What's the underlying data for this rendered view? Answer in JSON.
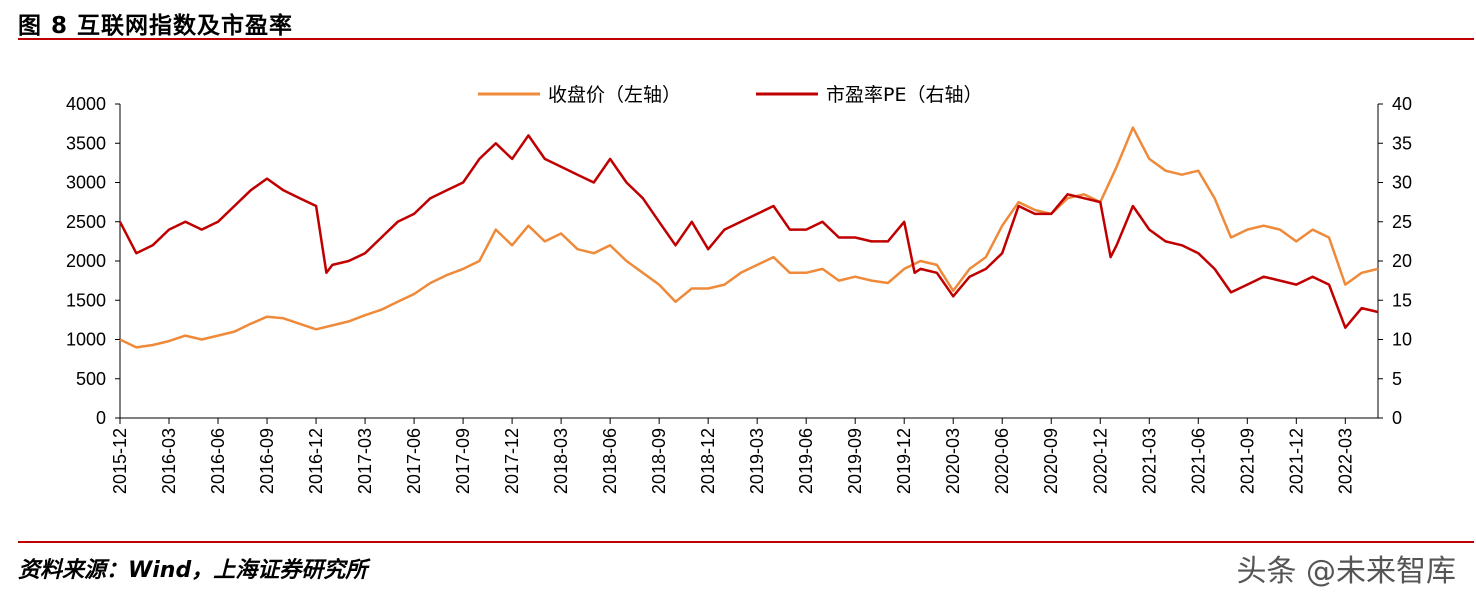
{
  "header": {
    "title": "图 8 互联网指数及市盈率"
  },
  "footer": {
    "source": "资料来源：Wind，上海证券研究所",
    "watermark": "头条 @未来智库"
  },
  "colors": {
    "close": "#ee8a3a",
    "pe": "#c00000",
    "rule": "#c00000",
    "axis": "#000000"
  },
  "chart_data": {
    "type": "line",
    "title": "",
    "x_ticks": [
      "2015-12",
      "2016-03",
      "2016-06",
      "2016-09",
      "2016-12",
      "2017-03",
      "2017-06",
      "2017-09",
      "2017-12",
      "2018-03",
      "2018-06",
      "2018-09",
      "2018-12",
      "2019-03",
      "2019-06",
      "2019-09",
      "2019-12",
      "2020-03",
      "2020-06",
      "2020-09",
      "2020-12",
      "2021-03",
      "2021-06",
      "2021-09",
      "2021-12",
      "2022-03"
    ],
    "x_range": [
      "2015-12",
      "2022-05"
    ],
    "y_left": {
      "ylim": [
        0,
        4000
      ],
      "ticks": [
        "0",
        "500",
        "1000",
        "1500",
        "2000",
        "2500",
        "3000",
        "3500",
        "4000"
      ]
    },
    "y_right": {
      "ylim": [
        0,
        40
      ],
      "ticks": [
        "0",
        "5",
        "10",
        "15",
        "20",
        "25",
        "30",
        "35",
        "40"
      ]
    },
    "legend_position": "top-center",
    "series": [
      {
        "name": "收盘价（左轴）",
        "axis": "left",
        "color": "#ee8a3a",
        "points": [
          [
            "2015-12",
            1000
          ],
          [
            "2016-01",
            900
          ],
          [
            "2016-02",
            930
          ],
          [
            "2016-03",
            980
          ],
          [
            "2016-04",
            1050
          ],
          [
            "2016-05",
            1000
          ],
          [
            "2016-06",
            1050
          ],
          [
            "2016-07",
            1100
          ],
          [
            "2016-08",
            1200
          ],
          [
            "2016-09",
            1290
          ],
          [
            "2016-10",
            1270
          ],
          [
            "2016-11",
            1200
          ],
          [
            "2016-12",
            1130
          ],
          [
            "2017-01",
            1180
          ],
          [
            "2017-02",
            1230
          ],
          [
            "2017-03",
            1310
          ],
          [
            "2017-04",
            1380
          ],
          [
            "2017-05",
            1480
          ],
          [
            "2017-06",
            1580
          ],
          [
            "2017-07",
            1720
          ],
          [
            "2017-08",
            1820
          ],
          [
            "2017-09",
            1900
          ],
          [
            "2017-10",
            2000
          ],
          [
            "2017-11",
            2400
          ],
          [
            "2017-12",
            2200
          ],
          [
            "2018-01",
            2450
          ],
          [
            "2018-02",
            2250
          ],
          [
            "2018-03",
            2350
          ],
          [
            "2018-04",
            2150
          ],
          [
            "2018-05",
            2100
          ],
          [
            "2018-06",
            2200
          ],
          [
            "2018-07",
            2000
          ],
          [
            "2018-08",
            1850
          ],
          [
            "2018-09",
            1700
          ],
          [
            "2018-10",
            1480
          ],
          [
            "2018-11",
            1650
          ],
          [
            "2018-12",
            1650
          ],
          [
            "2019-01",
            1700
          ],
          [
            "2019-02",
            1850
          ],
          [
            "2019-03",
            1950
          ],
          [
            "2019-04",
            2050
          ],
          [
            "2019-05",
            1850
          ],
          [
            "2019-06",
            1850
          ],
          [
            "2019-07",
            1900
          ],
          [
            "2019-08",
            1750
          ],
          [
            "2019-09",
            1800
          ],
          [
            "2019-10",
            1750
          ],
          [
            "2019-11",
            1720
          ],
          [
            "2019-12",
            1900
          ],
          [
            "2020-01",
            2000
          ],
          [
            "2020-02",
            1950
          ],
          [
            "2020-03",
            1620
          ],
          [
            "2020-04",
            1900
          ],
          [
            "2020-05",
            2050
          ],
          [
            "2020-06",
            2450
          ],
          [
            "2020-07",
            2750
          ],
          [
            "2020-08",
            2650
          ],
          [
            "2020-09",
            2600
          ],
          [
            "2020-10",
            2800
          ],
          [
            "2020-11",
            2850
          ],
          [
            "2020-12",
            2750
          ],
          [
            "2021-01",
            3200
          ],
          [
            "2021-02",
            3700
          ],
          [
            "2021-03",
            3300
          ],
          [
            "2021-04",
            3150
          ],
          [
            "2021-05",
            3100
          ],
          [
            "2021-06",
            3150
          ],
          [
            "2021-07",
            2800
          ],
          [
            "2021-08",
            2300
          ],
          [
            "2021-09",
            2400
          ],
          [
            "2021-10",
            2450
          ],
          [
            "2021-11",
            2400
          ],
          [
            "2021-12",
            2250
          ],
          [
            "2022-01",
            2400
          ],
          [
            "2022-02",
            2300
          ],
          [
            "2022-03",
            1700
          ],
          [
            "2022-04",
            1850
          ],
          [
            "2022-05",
            1900
          ]
        ]
      },
      {
        "name": "市盈率PE（右轴）",
        "axis": "right",
        "color": "#c00000",
        "points": [
          [
            "2015-12",
            25
          ],
          [
            "2016-01",
            21
          ],
          [
            "2016-02",
            22
          ],
          [
            "2016-03",
            24
          ],
          [
            "2016-04",
            25
          ],
          [
            "2016-05",
            24
          ],
          [
            "2016-06",
            25
          ],
          [
            "2016-07",
            27
          ],
          [
            "2016-08",
            29
          ],
          [
            "2016-09",
            30.5
          ],
          [
            "2016-10",
            29
          ],
          [
            "2016-11",
            28
          ],
          [
            "2016-12",
            27
          ],
          [
            "2016-12-20",
            18.5
          ],
          [
            "2017-01",
            19.5
          ],
          [
            "2017-02",
            20
          ],
          [
            "2017-03",
            21
          ],
          [
            "2017-04",
            23
          ],
          [
            "2017-05",
            25
          ],
          [
            "2017-06",
            26
          ],
          [
            "2017-07",
            28
          ],
          [
            "2017-08",
            29
          ],
          [
            "2017-09",
            30
          ],
          [
            "2017-10",
            33
          ],
          [
            "2017-11",
            35
          ],
          [
            "2017-12",
            33
          ],
          [
            "2018-01",
            36
          ],
          [
            "2018-02",
            33
          ],
          [
            "2018-03",
            32
          ],
          [
            "2018-04",
            31
          ],
          [
            "2018-05",
            30
          ],
          [
            "2018-06",
            33
          ],
          [
            "2018-07",
            30
          ],
          [
            "2018-08",
            28
          ],
          [
            "2018-09",
            25
          ],
          [
            "2018-10",
            22
          ],
          [
            "2018-11",
            25
          ],
          [
            "2018-12",
            21.5
          ],
          [
            "2019-01",
            24
          ],
          [
            "2019-02",
            25
          ],
          [
            "2019-03",
            26
          ],
          [
            "2019-04",
            27
          ],
          [
            "2019-05",
            24
          ],
          [
            "2019-06",
            24
          ],
          [
            "2019-07",
            25
          ],
          [
            "2019-08",
            23
          ],
          [
            "2019-09",
            23
          ],
          [
            "2019-10",
            22.5
          ],
          [
            "2019-11",
            22.5
          ],
          [
            "2019-12",
            25
          ],
          [
            "2019-12-20",
            18.5
          ],
          [
            "2020-01",
            19
          ],
          [
            "2020-02",
            18.5
          ],
          [
            "2020-03",
            15.5
          ],
          [
            "2020-04",
            18
          ],
          [
            "2020-05",
            19
          ],
          [
            "2020-06",
            21
          ],
          [
            "2020-07",
            27
          ],
          [
            "2020-08",
            26
          ],
          [
            "2020-09",
            26
          ],
          [
            "2020-10",
            28.5
          ],
          [
            "2020-11",
            28
          ],
          [
            "2020-12",
            27.5
          ],
          [
            "2020-12-20",
            20.5
          ],
          [
            "2021-01",
            22
          ],
          [
            "2021-02",
            27
          ],
          [
            "2021-03",
            24
          ],
          [
            "2021-04",
            22.5
          ],
          [
            "2021-05",
            22
          ],
          [
            "2021-06",
            21
          ],
          [
            "2021-07",
            19
          ],
          [
            "2021-08",
            16
          ],
          [
            "2021-09",
            17
          ],
          [
            "2021-10",
            18
          ],
          [
            "2021-11",
            17.5
          ],
          [
            "2021-12",
            17
          ],
          [
            "2022-01",
            18
          ],
          [
            "2022-02",
            17
          ],
          [
            "2022-03",
            11.5
          ],
          [
            "2022-04",
            14
          ],
          [
            "2022-05",
            13.5
          ]
        ]
      }
    ]
  }
}
